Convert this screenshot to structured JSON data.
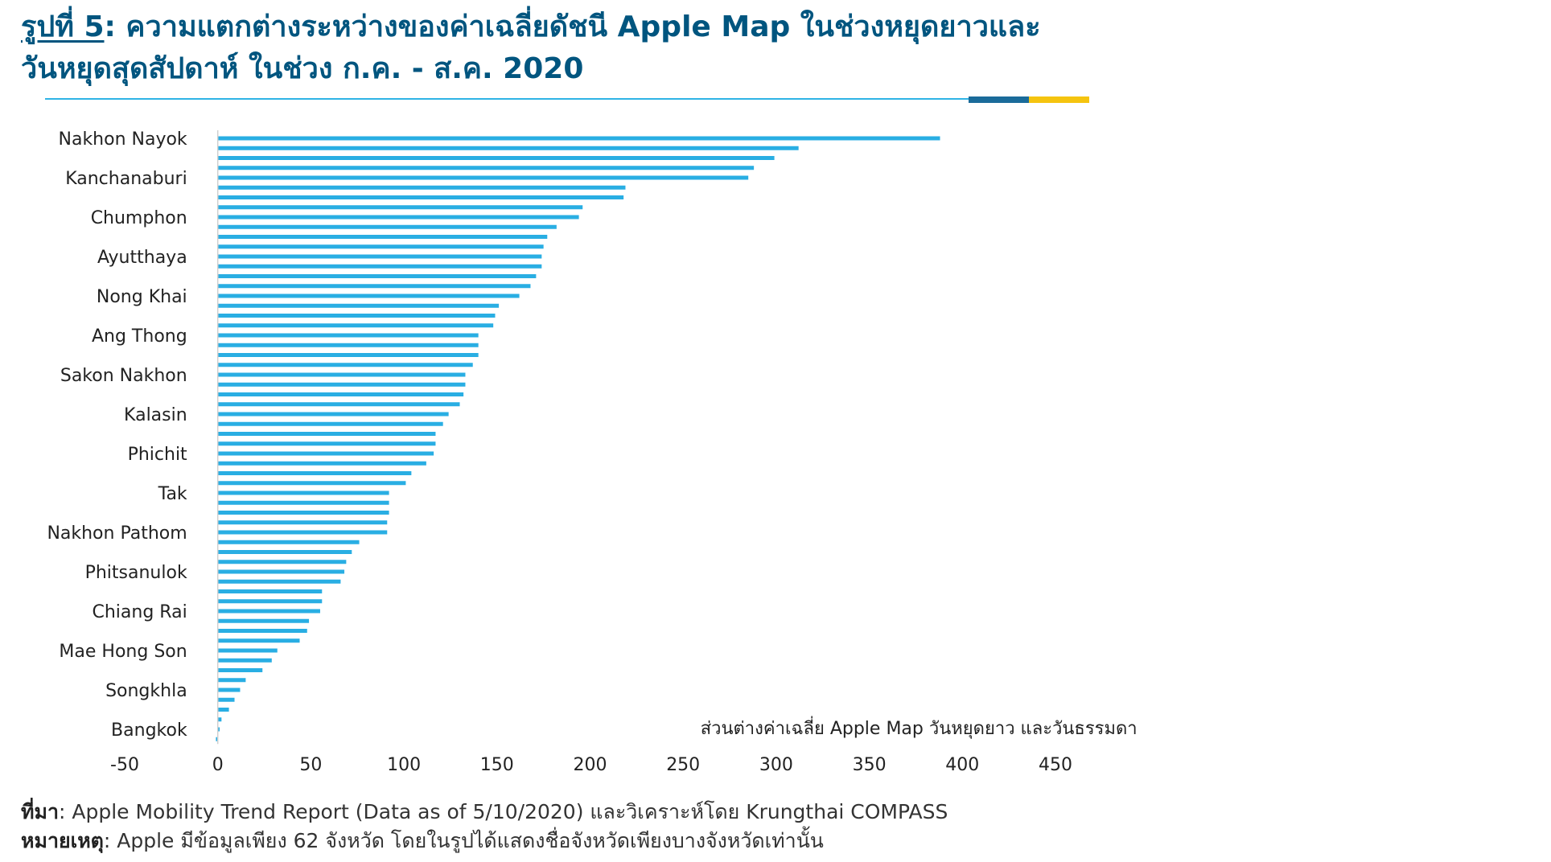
{
  "header": {
    "figure_number": "รูปที่ 5",
    "title_part1": ": ความแตกต่างระหว่างของค่าเฉลี่ยดัชนี Apple Map ในช่วงหยุดยาวและ",
    "title_part2": "วันหยุดสุดสัปดาห์ ในช่วง ก.ค. - ส.ค. 2020"
  },
  "footer": {
    "source_label": "ที่มา",
    "source_text": ": Apple Mobility Trend Report (Data as of 5/10/2020) และวิเคราะห์โดย Krungthai COMPASS",
    "note_label": "หมายเหตุ",
    "note_text": ": Apple มีข้อมูลเพียง 62 จังหวัด โดยในรูปได้แสดงชื่อจังหวัดเพียงบางจังหวัดเท่านั้น"
  },
  "colors": {
    "bar": "#29aee3",
    "title": "#00557f",
    "accent_blue": "#1a6b9a",
    "accent_gold": "#f5c40f"
  },
  "chart_data": {
    "type": "bar",
    "orientation": "horizontal",
    "xlabel": "ส่วนต่างค่าเฉลี่ย Apple Map วันหยุดยาว และวันธรรมดา",
    "xlim": [
      -50,
      450
    ],
    "xticks": [
      "-50",
      "0",
      "50",
      "100",
      "150",
      "200",
      "250",
      "300",
      "350",
      "400",
      "450"
    ],
    "grid": false,
    "legend": "none",
    "labels_every": 4,
    "categories": [
      "Nakhon Nayok",
      "",
      "",
      "",
      "Kanchanaburi",
      "",
      "",
      "",
      "Chumphon",
      "",
      "",
      "",
      "Ayutthaya",
      "",
      "",
      "",
      "Nong Khai",
      "",
      "",
      "",
      "Ang Thong",
      "",
      "",
      "",
      "Sakon Nakhon",
      "",
      "",
      "",
      "Kalasin",
      "",
      "",
      "",
      "Phichit",
      "",
      "",
      "",
      "Tak",
      "",
      "",
      "",
      "Nakhon Pathom",
      "",
      "",
      "",
      "Phitsanulok",
      "",
      "",
      "",
      "Chiang Rai",
      "",
      "",
      "",
      "Mae Hong Son",
      "",
      "",
      "",
      "Songkhla",
      "",
      "",
      "",
      "Bangkok",
      ""
    ],
    "values": [
      388,
      312,
      299,
      288,
      285,
      219,
      218,
      196,
      194,
      182,
      177,
      175,
      174,
      174,
      171,
      168,
      162,
      151,
      149,
      148,
      140,
      140,
      140,
      137,
      133,
      133,
      132,
      130,
      124,
      121,
      117,
      117,
      116,
      112,
      104,
      101,
      92,
      92,
      92,
      91,
      91,
      76,
      72,
      69,
      68,
      66,
      56,
      56,
      55,
      49,
      48,
      44,
      32,
      29,
      24,
      15,
      12,
      9,
      6,
      2,
      1,
      -1
    ]
  }
}
